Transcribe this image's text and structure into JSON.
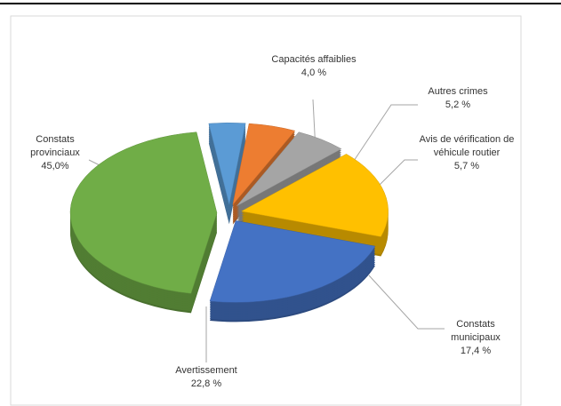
{
  "chart_data": {
    "type": "pie",
    "categories": [
      "Capacités affaiblies",
      "Autres crimes",
      "Avis de vérification de véhicule routier",
      "Constats municipaux",
      "Avertissement",
      "Constats provinciaux"
    ],
    "values": [
      4.0,
      5.2,
      5.7,
      17.4,
      22.8,
      45.0
    ],
    "value_labels": [
      "4,0 %",
      "5,2 %",
      "5,7 %",
      "17,4 %",
      "22,8 %",
      "45,0%"
    ],
    "colors": [
      "#5b9bd5",
      "#ed7d31",
      "#a5a5a5",
      "#ffc000",
      "#4472c4",
      "#70ad47"
    ]
  }
}
